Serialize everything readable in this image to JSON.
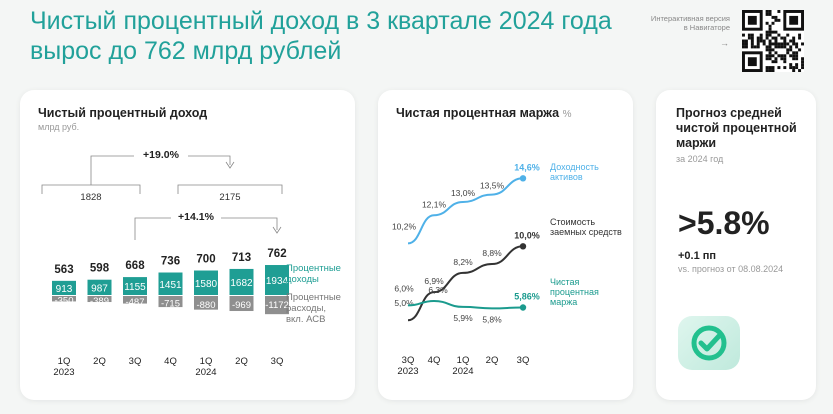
{
  "headline": {
    "line1": "Чистый процентный доход в  3 квартале 2024 года",
    "line2": "вырос до 762 млрд рублей"
  },
  "nav_note": "Интерактивная версия в Навигаторе",
  "nav_arrow": "→",
  "colors": {
    "accent": "#21a19a",
    "teal": "#1f9e94",
    "gray": "#8f8f8f",
    "blue": "#4fb1e8",
    "dark": "#333333",
    "green": "#1b9b8e"
  },
  "chart_data": [
    {
      "type": "bar",
      "title": "Чистый процентный доход",
      "subtitle": "млрд руб.",
      "categories": [
        "1Q",
        "2Q",
        "3Q",
        "4Q",
        "1Q",
        "2Q",
        "3Q"
      ],
      "year_labels": [
        "2023",
        "2024"
      ],
      "totals": [
        "563",
        "598",
        "668",
        "736",
        "700",
        "713",
        "762"
      ],
      "series": [
        {
          "name": "Процентные доходы",
          "values": [
            913,
            987,
            1155,
            1451,
            1580,
            1682,
            1934
          ],
          "labels": [
            "913",
            "987",
            "1155",
            "1451",
            "1580",
            "1682",
            "1934"
          ]
        },
        {
          "name": "Процентные расходы, вкл. АСВ",
          "values": [
            -350,
            -389,
            -487,
            -715,
            -880,
            -969,
            -1172
          ],
          "labels": [
            "-350",
            "-389",
            "-487",
            "-715",
            "-880",
            "-969",
            "-1172"
          ]
        }
      ],
      "legend_income": "Процентные доходы",
      "legend_expense_lines": [
        "Процентные",
        "расходы,",
        "вкл. АСВ"
      ],
      "half_year_sums": [
        "1828",
        "2175"
      ],
      "growth_half_year": "+19.0%",
      "growth_quarter": "+14.1%"
    },
    {
      "type": "line",
      "title": "Чистая процентная маржа",
      "unit": "%",
      "categories": [
        "3Q",
        "4Q",
        "1Q",
        "2Q",
        "3Q"
      ],
      "year_labels": [
        "2023",
        "2024"
      ],
      "ylim": [
        4.0,
        15.5
      ],
      "series": [
        {
          "name": "Доходность активов",
          "name_lines": [
            "Доходность",
            "активов"
          ],
          "values": [
            10.2,
            12.1,
            13.0,
            13.5,
            14.6
          ],
          "labels": [
            "10,2%",
            "12,1%",
            "13,0%",
            "13,5%",
            "14,6%"
          ]
        },
        {
          "name": "Стоимость заемных средств",
          "name_lines": [
            "Стоимость",
            "заемных средств"
          ],
          "values": [
            5.0,
            6.9,
            8.2,
            8.8,
            10.0
          ],
          "labels": [
            "5,0%",
            "6,9%",
            "8,2%",
            "8,8%",
            "10,0%"
          ]
        },
        {
          "name": "Чистая процентная маржа",
          "name_lines": [
            "Чистая",
            "процентная",
            "маржа"
          ],
          "values": [
            6.0,
            6.3,
            5.9,
            5.8,
            5.86
          ],
          "labels": [
            "6,0%",
            "6,3%",
            "5,9%",
            "5,8%",
            "5,86%"
          ]
        }
      ]
    }
  ],
  "forecast": {
    "title_lines": [
      "Прогноз средней",
      "чистой процентной",
      "маржи"
    ],
    "period": "за 2024 год",
    "value": ">5.8%",
    "delta": "+0.1 пп",
    "vs": "vs. прогноз от 08.08.2024"
  }
}
